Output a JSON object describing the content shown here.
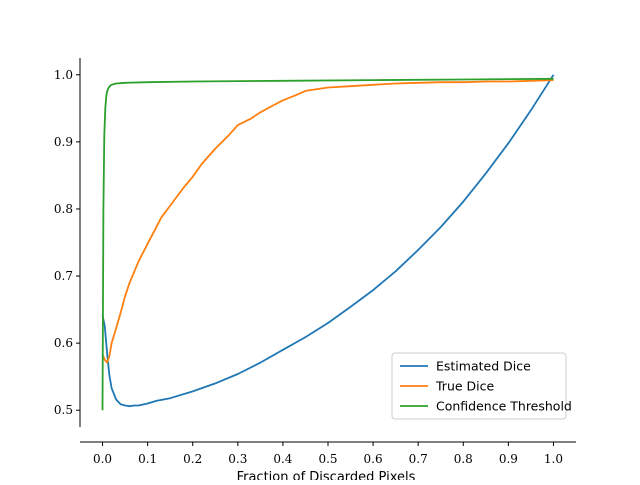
{
  "chart_data": {
    "type": "line",
    "xlabel": "Fraction of Discarded Pixels",
    "ylabel": "",
    "title": "",
    "xlim": [
      -0.05,
      1.05
    ],
    "ylim": [
      0.475,
      1.025
    ],
    "xticks": [
      "0.0",
      "0.1",
      "0.2",
      "0.3",
      "0.4",
      "0.5",
      "0.6",
      "0.7",
      "0.8",
      "0.9",
      "1.0"
    ],
    "yticks": [
      "0.5",
      "0.6",
      "0.7",
      "0.8",
      "0.9",
      "1.0"
    ],
    "grid": false,
    "legend_position": "lower-right",
    "series": [
      {
        "name": "Estimated Dice",
        "color": "#1f77b4",
        "x": [
          0.0,
          0.005,
          0.01,
          0.015,
          0.02,
          0.03,
          0.04,
          0.05,
          0.06,
          0.07,
          0.08,
          0.1,
          0.12,
          0.15,
          0.2,
          0.25,
          0.3,
          0.35,
          0.4,
          0.45,
          0.5,
          0.55,
          0.6,
          0.65,
          0.7,
          0.75,
          0.8,
          0.85,
          0.9,
          0.95,
          1.0
        ],
        "y": [
          0.642,
          0.625,
          0.585,
          0.553,
          0.533,
          0.516,
          0.509,
          0.507,
          0.506,
          0.507,
          0.507,
          0.51,
          0.514,
          0.518,
          0.528,
          0.54,
          0.554,
          0.571,
          0.59,
          0.609,
          0.63,
          0.654,
          0.679,
          0.707,
          0.739,
          0.773,
          0.811,
          0.853,
          0.898,
          0.947,
          1.0
        ]
      },
      {
        "name": "True Dice",
        "color": "#ff7f0e",
        "x": [
          0.0,
          0.005,
          0.01,
          0.015,
          0.02,
          0.03,
          0.04,
          0.05,
          0.06,
          0.08,
          0.1,
          0.13,
          0.15,
          0.18,
          0.2,
          0.22,
          0.25,
          0.28,
          0.3,
          0.33,
          0.35,
          0.38,
          0.4,
          0.43,
          0.45,
          0.5,
          0.55,
          0.6,
          0.65,
          0.7,
          0.75,
          0.8,
          0.85,
          0.9,
          0.95,
          1.0
        ],
        "y": [
          0.583,
          0.575,
          0.571,
          0.58,
          0.6,
          0.622,
          0.645,
          0.67,
          0.69,
          0.722,
          0.748,
          0.787,
          0.805,
          0.832,
          0.848,
          0.867,
          0.89,
          0.91,
          0.925,
          0.935,
          0.944,
          0.955,
          0.962,
          0.97,
          0.976,
          0.981,
          0.983,
          0.985,
          0.987,
          0.988,
          0.989,
          0.989,
          0.99,
          0.99,
          0.991,
          0.992
        ]
      },
      {
        "name": "Confidence Threshold",
        "color": "#2ca02c",
        "x": [
          0.0,
          0.002,
          0.004,
          0.006,
          0.008,
          0.01,
          0.013,
          0.016,
          0.02,
          0.03,
          0.05,
          0.1,
          0.2,
          0.4,
          0.6,
          0.8,
          1.0
        ],
        "y": [
          0.5,
          0.8,
          0.91,
          0.95,
          0.967,
          0.975,
          0.98,
          0.983,
          0.985,
          0.987,
          0.988,
          0.989,
          0.99,
          0.991,
          0.992,
          0.993,
          0.994
        ]
      }
    ]
  }
}
